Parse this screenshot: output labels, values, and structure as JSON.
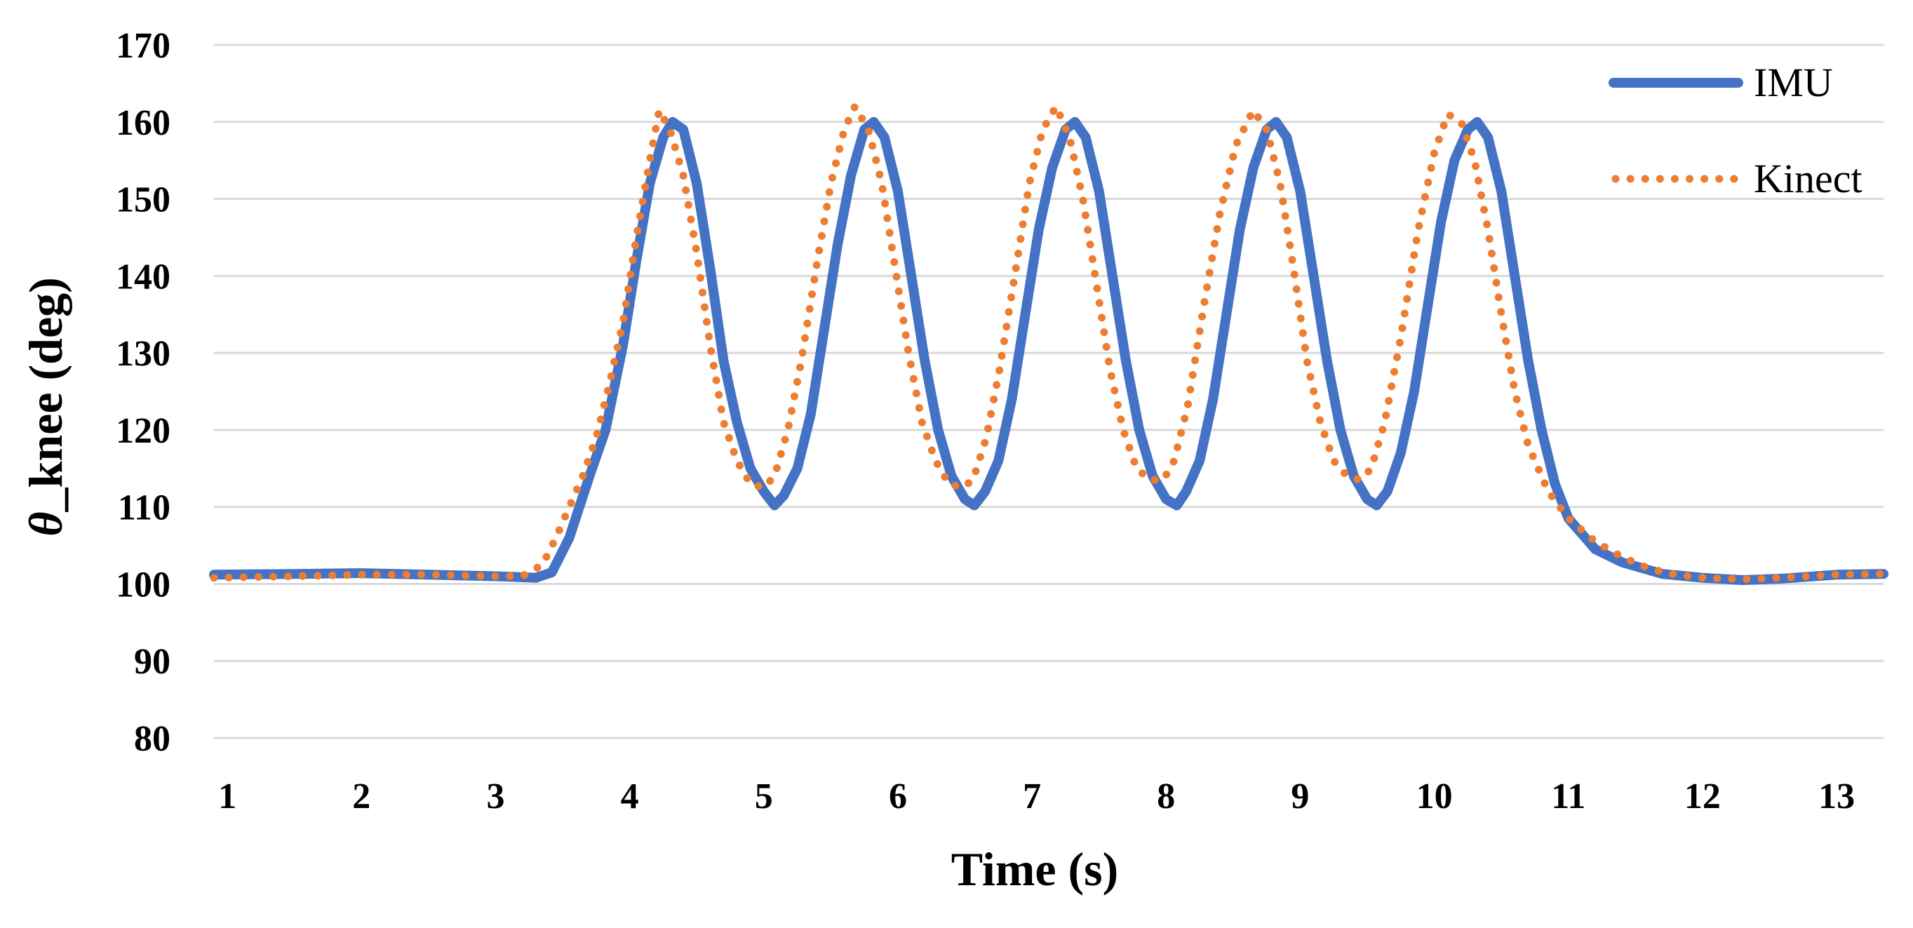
{
  "chart_data": {
    "type": "line",
    "title": "",
    "xlabel": "Time (s)",
    "ylabel_symbol": "θ",
    "ylabel_rest": "_knee (deg)",
    "xlim": [
      0.9,
      13.35
    ],
    "ylim": [
      80,
      170
    ],
    "xticks": [
      1,
      2,
      3,
      4,
      5,
      6,
      7,
      8,
      9,
      10,
      11,
      12,
      13
    ],
    "yticks": [
      80,
      90,
      100,
      110,
      120,
      130,
      140,
      150,
      160,
      170
    ],
    "grid": "horizontal",
    "legend_position": "top-right",
    "colors": {
      "IMU": "#4472C4",
      "Kinect": "#ED7D31",
      "grid": "#D9D9D9"
    },
    "series": [
      {
        "name": "IMU",
        "style": "solid",
        "points": [
          [
            0.9,
            101.2
          ],
          [
            1.5,
            101.3
          ],
          [
            2.0,
            101.4
          ],
          [
            2.5,
            101.2
          ],
          [
            3.0,
            101.0
          ],
          [
            3.3,
            100.8
          ],
          [
            3.42,
            101.5
          ],
          [
            3.55,
            106
          ],
          [
            3.7,
            114
          ],
          [
            3.82,
            120
          ],
          [
            3.95,
            131
          ],
          [
            4.05,
            142
          ],
          [
            4.15,
            152
          ],
          [
            4.25,
            158
          ],
          [
            4.32,
            160
          ],
          [
            4.4,
            159
          ],
          [
            4.5,
            152
          ],
          [
            4.6,
            141
          ],
          [
            4.7,
            129
          ],
          [
            4.8,
            121
          ],
          [
            4.9,
            115
          ],
          [
            5.0,
            112
          ],
          [
            5.08,
            110.2
          ],
          [
            5.15,
            111.5
          ],
          [
            5.25,
            115
          ],
          [
            5.35,
            122
          ],
          [
            5.45,
            133
          ],
          [
            5.55,
            144
          ],
          [
            5.65,
            153
          ],
          [
            5.75,
            159
          ],
          [
            5.82,
            160
          ],
          [
            5.9,
            158
          ],
          [
            6.0,
            151
          ],
          [
            6.1,
            140
          ],
          [
            6.2,
            129
          ],
          [
            6.3,
            120
          ],
          [
            6.4,
            114
          ],
          [
            6.5,
            111
          ],
          [
            6.57,
            110.2
          ],
          [
            6.65,
            112
          ],
          [
            6.75,
            116
          ],
          [
            6.85,
            124
          ],
          [
            6.95,
            135
          ],
          [
            7.05,
            146
          ],
          [
            7.15,
            154
          ],
          [
            7.25,
            159
          ],
          [
            7.32,
            160
          ],
          [
            7.4,
            158
          ],
          [
            7.5,
            151
          ],
          [
            7.6,
            140
          ],
          [
            7.7,
            129
          ],
          [
            7.8,
            120
          ],
          [
            7.9,
            114
          ],
          [
            8.0,
            111
          ],
          [
            8.08,
            110.2
          ],
          [
            8.15,
            112
          ],
          [
            8.25,
            116
          ],
          [
            8.35,
            124
          ],
          [
            8.45,
            135
          ],
          [
            8.55,
            146
          ],
          [
            8.65,
            154
          ],
          [
            8.75,
            159
          ],
          [
            8.82,
            160
          ],
          [
            8.9,
            158
          ],
          [
            9.0,
            151
          ],
          [
            9.1,
            140
          ],
          [
            9.2,
            129
          ],
          [
            9.3,
            120
          ],
          [
            9.4,
            114
          ],
          [
            9.5,
            111
          ],
          [
            9.57,
            110.2
          ],
          [
            9.65,
            112
          ],
          [
            9.75,
            117
          ],
          [
            9.85,
            125
          ],
          [
            9.95,
            136
          ],
          [
            10.05,
            147
          ],
          [
            10.15,
            155
          ],
          [
            10.25,
            159
          ],
          [
            10.32,
            160
          ],
          [
            10.4,
            158
          ],
          [
            10.5,
            151
          ],
          [
            10.6,
            140
          ],
          [
            10.7,
            129
          ],
          [
            10.8,
            120
          ],
          [
            10.9,
            113
          ],
          [
            11.0,
            108.5
          ],
          [
            11.2,
            104.5
          ],
          [
            11.4,
            102.8
          ],
          [
            11.7,
            101.3
          ],
          [
            12.0,
            100.8
          ],
          [
            12.3,
            100.5
          ],
          [
            12.6,
            100.7
          ],
          [
            13.0,
            101.2
          ],
          [
            13.35,
            101.3
          ]
        ]
      },
      {
        "name": "Kinect",
        "style": "dotted",
        "points": [
          [
            0.9,
            100.8
          ],
          [
            1.5,
            101.0
          ],
          [
            2.0,
            101.2
          ],
          [
            2.5,
            101.2
          ],
          [
            3.0,
            101.0
          ],
          [
            3.2,
            101.0
          ],
          [
            3.35,
            102.5
          ],
          [
            3.45,
            106
          ],
          [
            3.55,
            110
          ],
          [
            3.65,
            114
          ],
          [
            3.75,
            119
          ],
          [
            3.85,
            126
          ],
          [
            3.95,
            134
          ],
          [
            4.05,
            145
          ],
          [
            4.15,
            155
          ],
          [
            4.22,
            161.5
          ],
          [
            4.3,
            159
          ],
          [
            4.4,
            153
          ],
          [
            4.5,
            143
          ],
          [
            4.6,
            131
          ],
          [
            4.7,
            121
          ],
          [
            4.8,
            116
          ],
          [
            4.9,
            113
          ],
          [
            5.0,
            112.5
          ],
          [
            5.08,
            114
          ],
          [
            5.18,
            120
          ],
          [
            5.28,
            129
          ],
          [
            5.4,
            142
          ],
          [
            5.5,
            152
          ],
          [
            5.6,
            159
          ],
          [
            5.68,
            162
          ],
          [
            5.78,
            159
          ],
          [
            5.88,
            152
          ],
          [
            5.98,
            141
          ],
          [
            6.08,
            130
          ],
          [
            6.18,
            121
          ],
          [
            6.28,
            116
          ],
          [
            6.38,
            113
          ],
          [
            6.48,
            112.5
          ],
          [
            6.56,
            113.5
          ],
          [
            6.66,
            119
          ],
          [
            6.76,
            128
          ],
          [
            6.88,
            141
          ],
          [
            6.98,
            152
          ],
          [
            7.08,
            159
          ],
          [
            7.18,
            162
          ],
          [
            7.28,
            158
          ],
          [
            7.38,
            150
          ],
          [
            7.48,
            139
          ],
          [
            7.58,
            128
          ],
          [
            7.68,
            120
          ],
          [
            7.78,
            115
          ],
          [
            7.88,
            113.5
          ],
          [
            7.98,
            113.5
          ],
          [
            8.06,
            116
          ],
          [
            8.16,
            123
          ],
          [
            8.28,
            136
          ],
          [
            8.4,
            148
          ],
          [
            8.52,
            157
          ],
          [
            8.65,
            161.5
          ],
          [
            8.75,
            159
          ],
          [
            8.85,
            152
          ],
          [
            8.95,
            141
          ],
          [
            9.05,
            129
          ],
          [
            9.15,
            121
          ],
          [
            9.25,
            116
          ],
          [
            9.35,
            114
          ],
          [
            9.45,
            113.5
          ],
          [
            9.53,
            115
          ],
          [
            9.63,
            121
          ],
          [
            9.75,
            132
          ],
          [
            9.88,
            146
          ],
          [
            10.0,
            156
          ],
          [
            10.1,
            161
          ],
          [
            10.2,
            160
          ],
          [
            10.3,
            155
          ],
          [
            10.4,
            146
          ],
          [
            10.5,
            135
          ],
          [
            10.6,
            125
          ],
          [
            10.7,
            118
          ],
          [
            10.85,
            112
          ],
          [
            11.0,
            108.5
          ],
          [
            11.2,
            105.5
          ],
          [
            11.4,
            103.5
          ],
          [
            11.6,
            102
          ],
          [
            11.8,
            101.2
          ],
          [
            12.0,
            100.8
          ],
          [
            12.3,
            100.6
          ],
          [
            12.6,
            100.8
          ],
          [
            13.0,
            101.2
          ],
          [
            13.35,
            101.3
          ]
        ]
      }
    ]
  }
}
